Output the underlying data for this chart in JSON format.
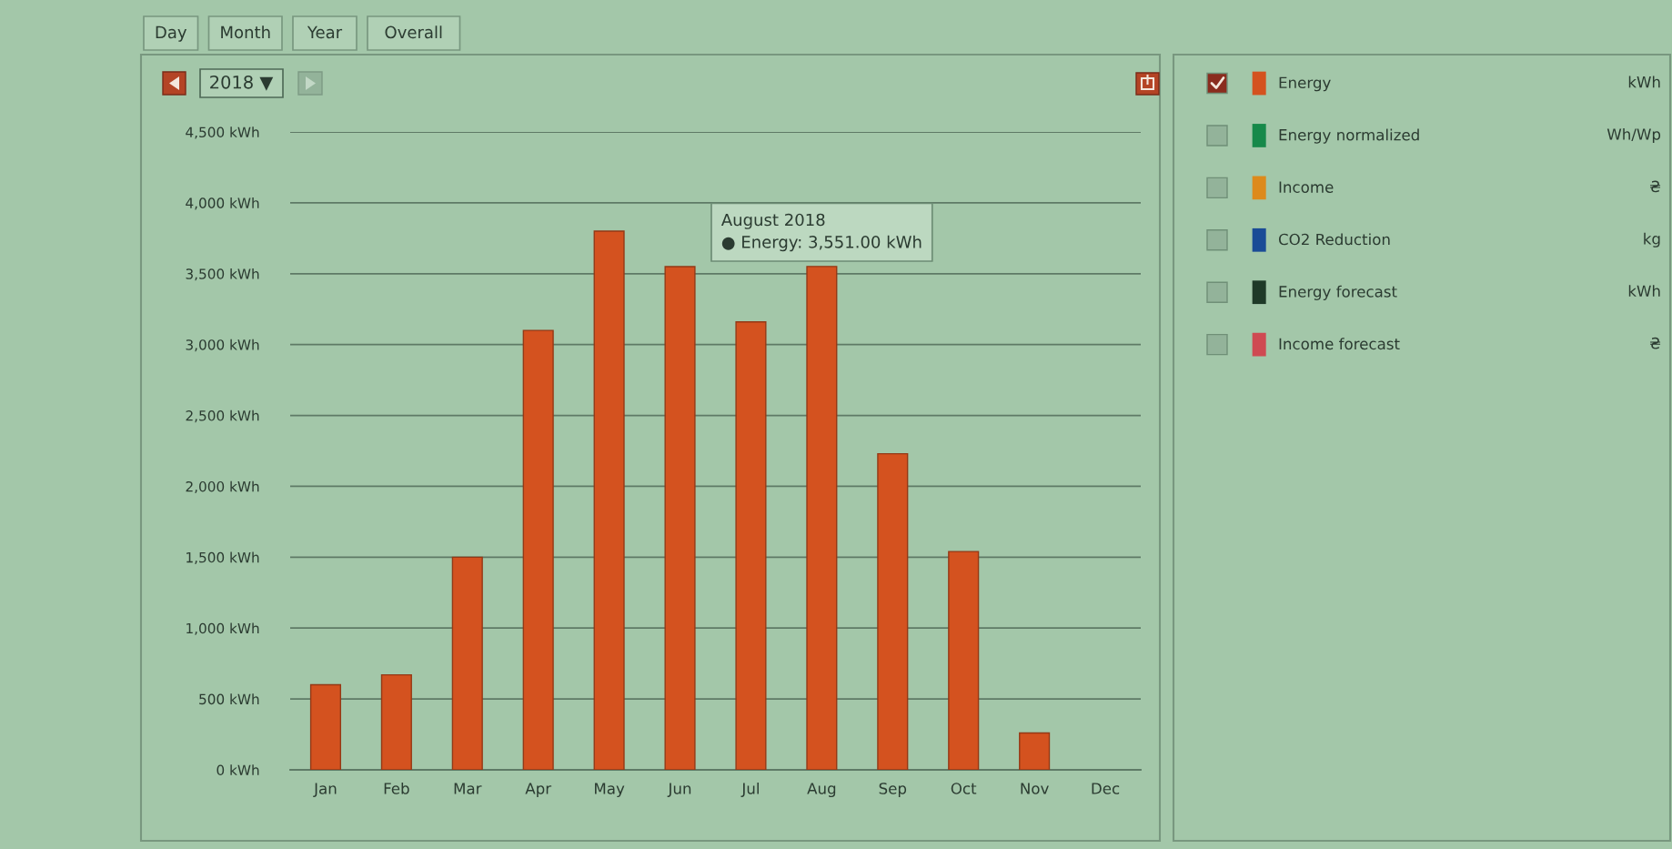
{
  "chart_data": {
    "type": "bar",
    "categories": [
      "Jan",
      "Feb",
      "Mar",
      "Apr",
      "May",
      "Jun",
      "Jul",
      "Aug",
      "Sep",
      "Oct",
      "Nov",
      "Dec"
    ],
    "series": [
      {
        "name": "Energy",
        "color": "#d4521f",
        "values": [
          600,
          670,
          1500,
          3100,
          3800,
          3550,
          3160,
          3551,
          2230,
          1540,
          260,
          null
        ]
      },
      {
        "name": "Energy normalized",
        "color": "#17894a",
        "values": [
          null,
          null,
          null,
          null,
          null,
          null,
          null,
          null,
          null,
          null,
          null,
          null
        ]
      },
      {
        "name": "Income",
        "color": "#dd8a1c",
        "values": [
          null,
          null,
          null,
          null,
          null,
          null,
          null,
          null,
          null,
          null,
          null,
          null
        ]
      },
      {
        "name": "CO2 Reduction",
        "color": "#1a4c96",
        "values": [
          null,
          null,
          null,
          null,
          null,
          null,
          null,
          null,
          null,
          null,
          null,
          null
        ]
      },
      {
        "name": "Energy forecast",
        "color": "#1f3a28",
        "values": [
          null,
          null,
          null,
          null,
          null,
          null,
          null,
          null,
          null,
          null,
          null,
          null
        ]
      },
      {
        "name": "Income forecast",
        "color": "#cf4a52",
        "values": [
          null,
          null,
          null,
          null,
          null,
          null,
          null,
          null,
          null,
          null,
          null,
          null
        ]
      }
    ],
    "ylim": [
      0,
      4500
    ],
    "yticks": [
      {
        "value": 0,
        "label": "0 kWh"
      },
      {
        "value": 500,
        "label": "500 kWh"
      },
      {
        "value": 1000,
        "label": "1,000 kWh"
      },
      {
        "value": 1500,
        "label": "1,500 kWh"
      },
      {
        "value": 2000,
        "label": "2,000 kWh"
      },
      {
        "value": 2500,
        "label": "2,500 kWh"
      },
      {
        "value": 3000,
        "label": "3,000 kWh"
      },
      {
        "value": 3500,
        "label": "3,500 kWh"
      },
      {
        "value": 4000,
        "label": "4,000 kWh"
      },
      {
        "value": 4500,
        "label": "4,500 kWh"
      }
    ],
    "grid": "y",
    "legend": "right",
    "annotations": [
      {
        "text": "August 2018\n● Energy: 3,551.00 kWh",
        "x": "Aug",
        "y": 3551
      },
      "Day",
      "Month",
      "Year",
      "Overall",
      "2018 ▼",
      "kWh",
      "Wh/Wp",
      "₴",
      "kg",
      "kWh",
      "₴"
    ]
  }
}
